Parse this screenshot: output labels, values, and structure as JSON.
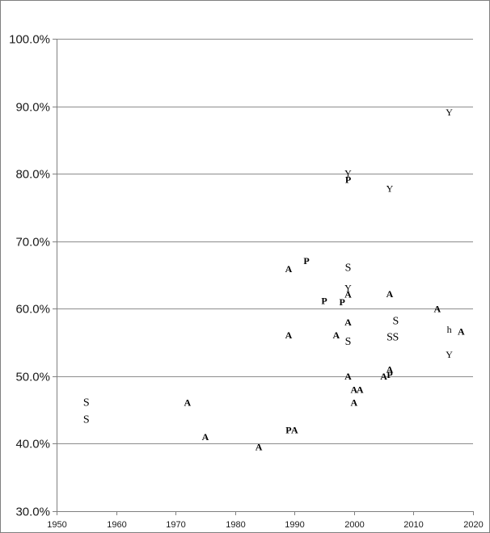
{
  "chart_data": {
    "type": "scatter",
    "title": "",
    "xlabel": "",
    "ylabel": "",
    "xlim": [
      1950,
      2020
    ],
    "ylim": [
      0.3,
      1.0
    ],
    "grid": "horizontal",
    "legend": "none",
    "x_ticks": [
      {
        "value": 1950,
        "label": "1950"
      },
      {
        "value": 1960,
        "label": "1960"
      },
      {
        "value": 1970,
        "label": "1970"
      },
      {
        "value": 1980,
        "label": "1980"
      },
      {
        "value": 1990,
        "label": "1990"
      },
      {
        "value": 2000,
        "label": "2000"
      },
      {
        "value": 2010,
        "label": "2010"
      },
      {
        "value": 2020,
        "label": "2020"
      }
    ],
    "y_ticks": [
      {
        "value": 0.3,
        "label": "30.0%"
      },
      {
        "value": 0.4,
        "label": "40.0%"
      },
      {
        "value": 0.5,
        "label": "50.0%"
      },
      {
        "value": 0.6,
        "label": "60.0%"
      },
      {
        "value": 0.7,
        "label": "70.0%"
      },
      {
        "value": 0.8,
        "label": "80.0%"
      },
      {
        "value": 0.9,
        "label": "90.0%"
      },
      {
        "value": 1.0,
        "label": "100.0%"
      }
    ],
    "points": [
      {
        "x": 1955.0,
        "y": 0.461,
        "label": "S",
        "style": "normal"
      },
      {
        "x": 1955.0,
        "y": 0.436,
        "label": "S",
        "style": "normal"
      },
      {
        "x": 1972.0,
        "y": 0.461,
        "label": "A",
        "style": "bold"
      },
      {
        "x": 1975.0,
        "y": 0.41,
        "label": "A",
        "style": "bold"
      },
      {
        "x": 1984.0,
        "y": 0.395,
        "label": "A",
        "style": "bold"
      },
      {
        "x": 1989.0,
        "y": 0.42,
        "label": "P",
        "style": "bold"
      },
      {
        "x": 1990.0,
        "y": 0.42,
        "label": "A",
        "style": "bold"
      },
      {
        "x": 1989.0,
        "y": 0.659,
        "label": "A",
        "style": "bold"
      },
      {
        "x": 1989.0,
        "y": 0.561,
        "label": "A",
        "style": "bold"
      },
      {
        "x": 1992.0,
        "y": 0.671,
        "label": "P",
        "style": "bold"
      },
      {
        "x": 1995.0,
        "y": 0.612,
        "label": "P",
        "style": "bold"
      },
      {
        "x": 1997.0,
        "y": 0.561,
        "label": "A",
        "style": "bold"
      },
      {
        "x": 1998.0,
        "y": 0.61,
        "label": "P",
        "style": "bold"
      },
      {
        "x": 1999.0,
        "y": 0.791,
        "label": "P",
        "style": "bold"
      },
      {
        "x": 1999.0,
        "y": 0.801,
        "label": "Y",
        "style": "normal"
      },
      {
        "x": 1999.0,
        "y": 0.661,
        "label": "S",
        "style": "normal"
      },
      {
        "x": 1999.0,
        "y": 0.631,
        "label": "Y",
        "style": "normal"
      },
      {
        "x": 1999.0,
        "y": 0.621,
        "label": "A",
        "style": "bold"
      },
      {
        "x": 1999.0,
        "y": 0.58,
        "label": "A",
        "style": "bold"
      },
      {
        "x": 1999.0,
        "y": 0.551,
        "label": "S",
        "style": "normal"
      },
      {
        "x": 1999.0,
        "y": 0.5,
        "label": "A",
        "style": "bold"
      },
      {
        "x": 2000.0,
        "y": 0.48,
        "label": "A",
        "style": "bold"
      },
      {
        "x": 2001.0,
        "y": 0.48,
        "label": "A",
        "style": "bold"
      },
      {
        "x": 2000.0,
        "y": 0.461,
        "label": "A",
        "style": "bold"
      },
      {
        "x": 2005.0,
        "y": 0.5,
        "label": "A",
        "style": "bold"
      },
      {
        "x": 2006.0,
        "y": 0.502,
        "label": "P",
        "style": "bold"
      },
      {
        "x": 2006.0,
        "y": 0.51,
        "label": "A",
        "style": "bold"
      },
      {
        "x": 2006.0,
        "y": 0.622,
        "label": "A",
        "style": "bold"
      },
      {
        "x": 2006.0,
        "y": 0.558,
        "label": "S",
        "style": "normal"
      },
      {
        "x": 2007.0,
        "y": 0.558,
        "label": "S",
        "style": "normal"
      },
      {
        "x": 2007.0,
        "y": 0.582,
        "label": "S",
        "style": "normal"
      },
      {
        "x": 2006.0,
        "y": 0.778,
        "label": "Y",
        "style": "normal"
      },
      {
        "x": 2014.0,
        "y": 0.6,
        "label": "A",
        "style": "bold"
      },
      {
        "x": 2016.0,
        "y": 0.569,
        "label": "h",
        "style": "normal"
      },
      {
        "x": 2018.0,
        "y": 0.566,
        "label": "A",
        "style": "bold"
      },
      {
        "x": 2016.0,
        "y": 0.532,
        "label": "Y",
        "style": "normal"
      },
      {
        "x": 2016.0,
        "y": 0.891,
        "label": "Y",
        "style": "normal"
      }
    ]
  }
}
